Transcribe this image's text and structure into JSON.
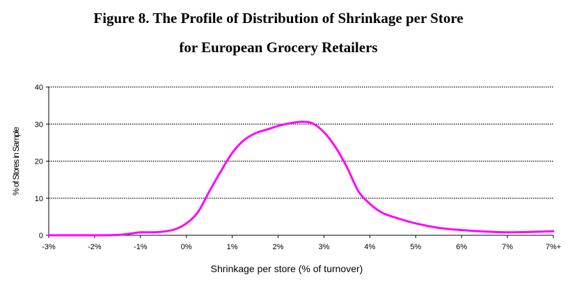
{
  "chart_data": {
    "type": "line",
    "title_line1": "Figure 8. The Profile of Distribution of Shrinkage per Store",
    "title_line2": "for European Grocery Retailers",
    "xlabel": "Shrinkage per store (% of turnover)",
    "ylabel": "% of Stores in Sample",
    "x_ticks": [
      "-3%",
      "-2%",
      "-1%",
      "0%",
      "1%",
      "2%",
      "3%",
      "4%",
      "5%",
      "6%",
      "7%",
      "7%+"
    ],
    "x_range": [
      -3,
      8
    ],
    "ylim": [
      0,
      40
    ],
    "y_ticks": [
      0,
      10,
      20,
      30,
      40
    ],
    "grid": "horizontal-dotted",
    "line_color": "#ff00ff",
    "series": [
      {
        "x": [
          -3,
          -2.5,
          -2,
          -1.5,
          -1.25,
          -1,
          -0.75,
          -0.5,
          -0.25,
          0,
          0.25,
          0.5,
          0.75,
          1,
          1.25,
          1.5,
          1.75,
          2,
          2.25,
          2.5,
          2.75,
          3,
          3.25,
          3.5,
          3.75,
          4,
          4.25,
          4.5,
          5,
          5.5,
          6,
          6.5,
          7,
          7.5,
          8
        ],
        "y": [
          0,
          0,
          0,
          0.1,
          0.4,
          0.8,
          0.8,
          1.0,
          1.6,
          3.2,
          6.2,
          11.8,
          17.2,
          22.2,
          25.6,
          27.5,
          28.5,
          29.5,
          30.2,
          30.6,
          30.2,
          27.8,
          23.8,
          18.4,
          11.9,
          8.5,
          6.2,
          5.0,
          3.2,
          2.0,
          1.4,
          1.0,
          0.8,
          0.9,
          1.1
        ]
      }
    ]
  }
}
